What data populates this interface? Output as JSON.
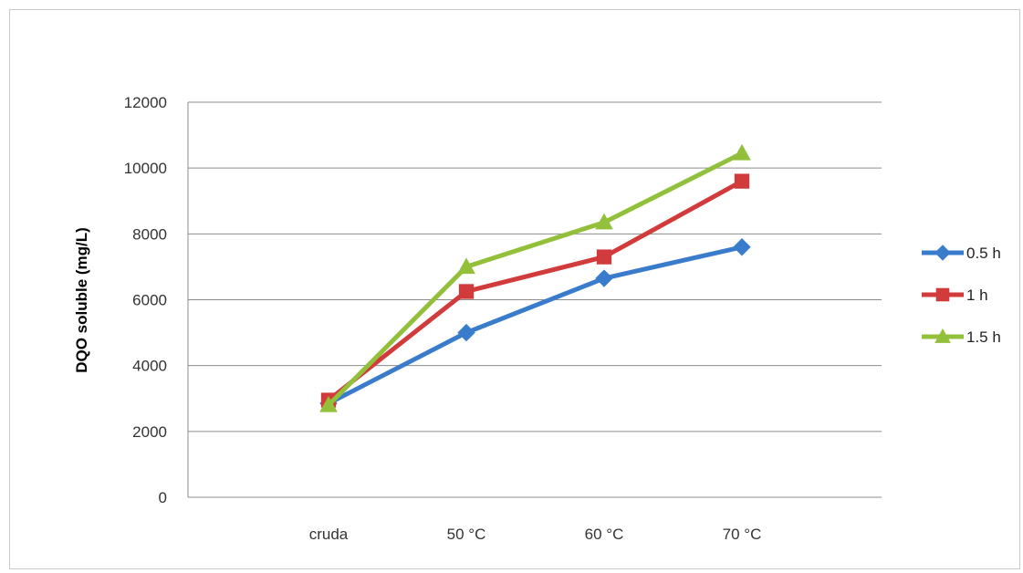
{
  "chart_data": {
    "type": "line",
    "categories": [
      "cruda",
      "50 °C",
      "60 °C",
      "70 °C"
    ],
    "ylabel": "DQO soluble  (mg/L)",
    "ylim": [
      0,
      12000
    ],
    "yticks": [
      0,
      2000,
      4000,
      6000,
      8000,
      10000,
      12000
    ],
    "grid": true,
    "legend_position": "right",
    "series": [
      {
        "name": "0.5 h",
        "values": [
          2850,
          5000,
          6650,
          7600
        ],
        "color": "#3a7ccc",
        "marker": "diamond"
      },
      {
        "name": "1 h",
        "values": [
          2950,
          6250,
          7300,
          9600
        ],
        "color": "#d23b3b",
        "marker": "square"
      },
      {
        "name": "1.5 h",
        "values": [
          2800,
          7000,
          8350,
          10450
        ],
        "color": "#92c03a",
        "marker": "triangle"
      }
    ]
  }
}
